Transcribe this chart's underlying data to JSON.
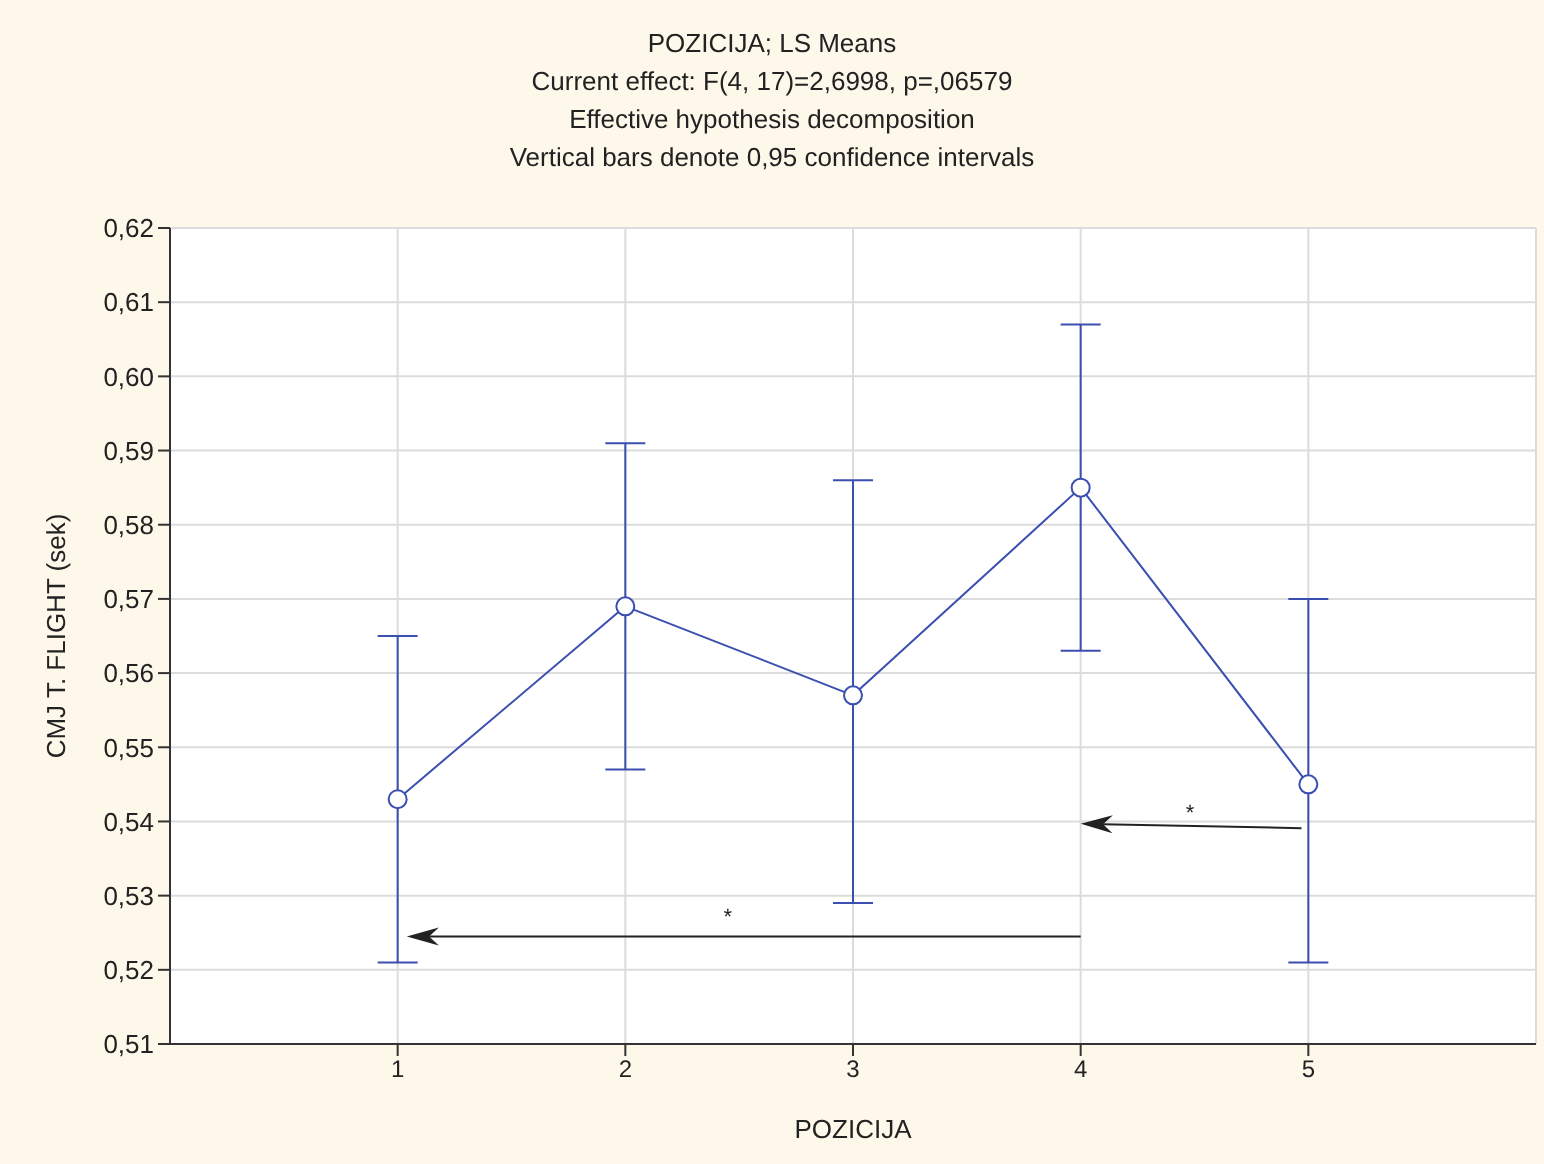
{
  "chart_data": {
    "type": "line",
    "title": "POZICIJA; LS Means",
    "subtitle": "Current effect: F(4, 17)=2,6998, p=,06579\nEffective hypothesis decomposition\nVertical bars denote 0,95 confidence intervals",
    "xlabel": "POZICIJA",
    "ylabel": "CMJ T. FLIGHT (sek)",
    "x": [
      1,
      2,
      3,
      4,
      5
    ],
    "series": [
      {
        "color": "#3a4fb0",
        "values": [
          0.543,
          0.569,
          0.557,
          0.585,
          0.545
        ],
        "errors": [
          [
            0.521,
            0.565
          ],
          [
            0.547,
            0.591
          ],
          [
            0.529,
            0.586
          ],
          [
            0.563,
            0.607
          ],
          [
            0.521,
            0.57
          ]
        ]
      }
    ],
    "xlim": [
      0,
      6
    ],
    "xticks": [
      1,
      2,
      3,
      4,
      5
    ],
    "ylim": [
      0.51,
      0.62
    ],
    "yticks": [
      {
        "value": 0.51,
        "label": "0,51"
      },
      {
        "value": 0.52,
        "label": "0,52"
      },
      {
        "value": 0.53,
        "label": "0,53"
      },
      {
        "value": 0.54,
        "label": "0,54"
      },
      {
        "value": 0.55,
        "label": "0,55"
      },
      {
        "value": 0.56,
        "label": "0,56"
      },
      {
        "value": 0.57,
        "label": "0,57"
      },
      {
        "value": 0.58,
        "label": "0,58"
      },
      {
        "value": 0.59,
        "label": "0,59"
      },
      {
        "value": 0.6,
        "label": "0,60"
      },
      {
        "value": 0.61,
        "label": "0,61"
      },
      {
        "value": 0.62,
        "label": "0,62"
      }
    ],
    "grid": true,
    "marker": "circle",
    "line_style": "solid",
    "annotations": [
      "*",
      "*"
    ]
  }
}
